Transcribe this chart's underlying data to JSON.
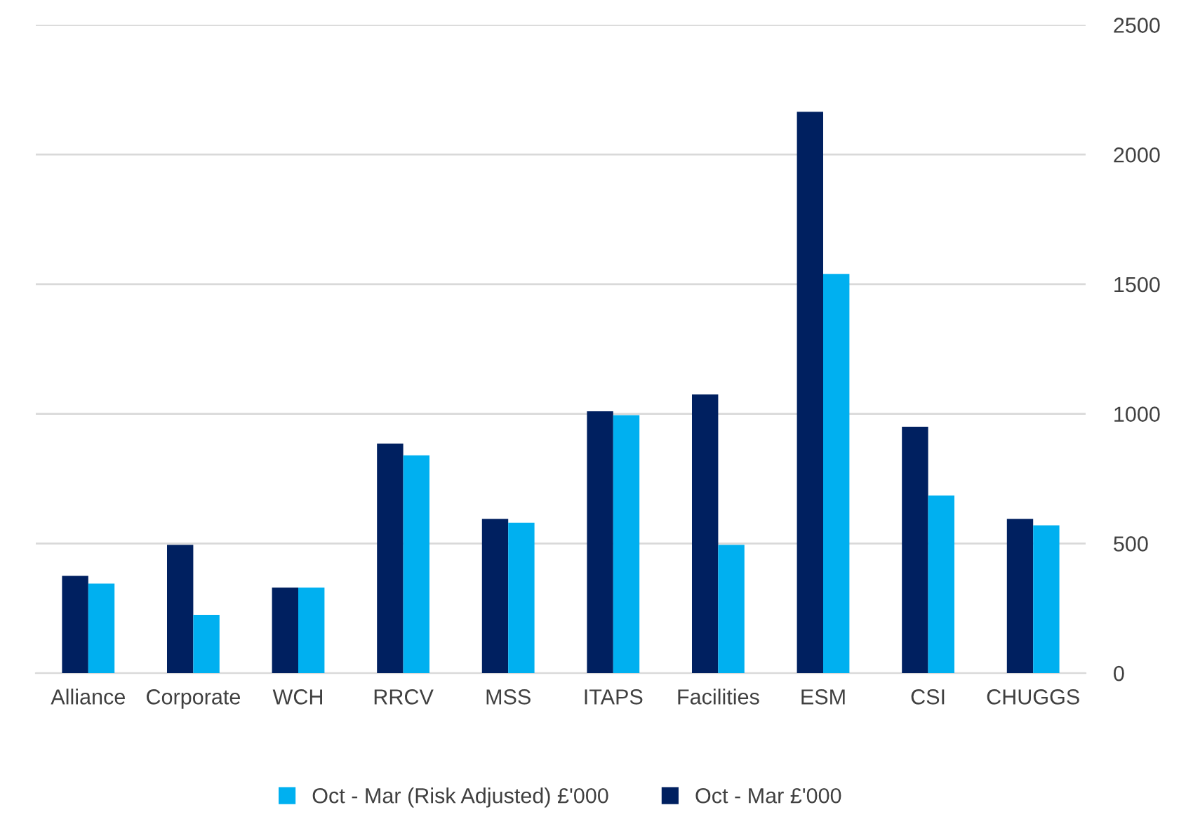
{
  "chart_data": {
    "type": "bar",
    "categories": [
      "Alliance",
      "Corporate",
      "WCH",
      "RRCV",
      "MSS",
      "ITAPS",
      "Facilities",
      "ESM",
      "CSI",
      "CHUGGS"
    ],
    "series": [
      {
        "name": "Oct - Mar £'000",
        "color": "#002060",
        "values": [
          375,
          495,
          330,
          885,
          595,
          1010,
          1075,
          2165,
          950,
          595
        ]
      },
      {
        "name": "Oct - Mar (Risk Adjusted) £'000",
        "color": "#00b0f0",
        "values": [
          345,
          225,
          330,
          840,
          580,
          995,
          495,
          1540,
          685,
          570
        ]
      }
    ],
    "ylim": [
      0,
      2500
    ],
    "yticks": [
      0,
      500,
      1000,
      1500,
      2000,
      2500
    ],
    "grid": "y",
    "legend": "bottom"
  }
}
